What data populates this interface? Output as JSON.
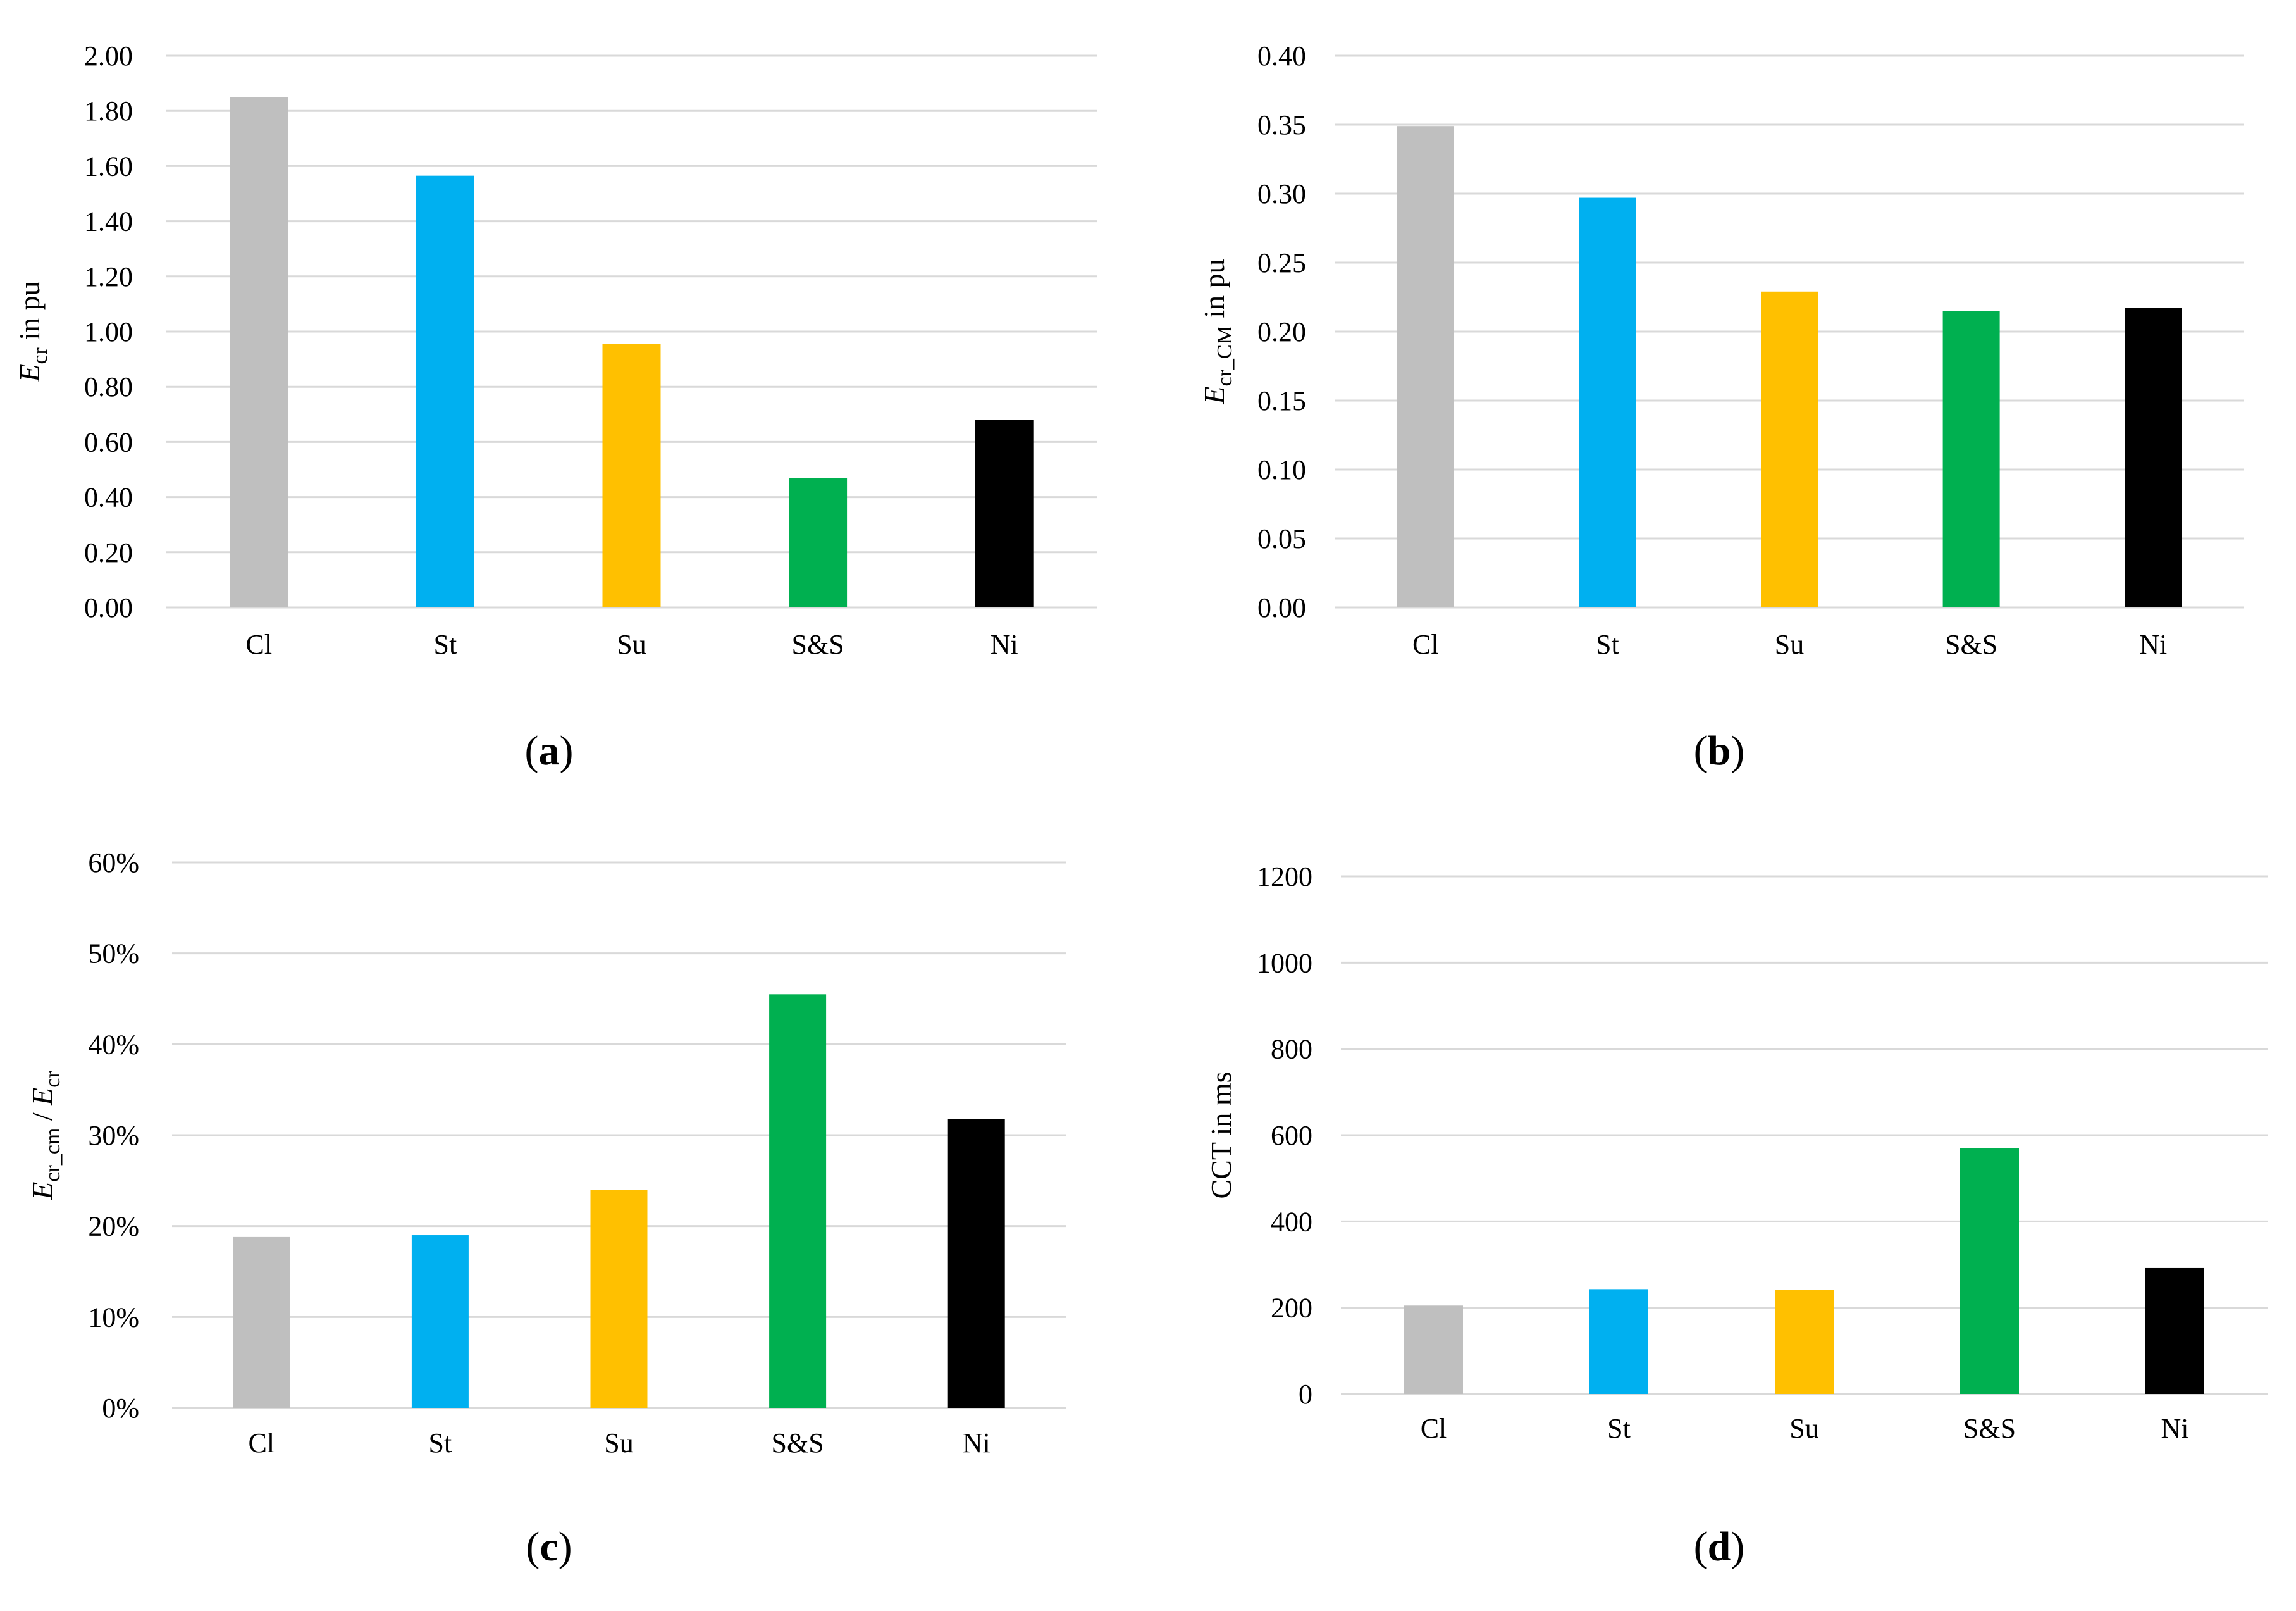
{
  "chart_data": [
    {
      "type": "bar",
      "panel": "a",
      "caption_letter": "a",
      "categories": [
        "Cl",
        "St",
        "Su",
        "S&S",
        "Ni"
      ],
      "values": [
        1.85,
        1.565,
        0.955,
        0.47,
        0.68
      ],
      "ylim": [
        0,
        2.0
      ],
      "yticks": [
        "0.00",
        "0.20",
        "0.40",
        "0.60",
        "0.80",
        "1.00",
        "1.20",
        "1.40",
        "1.60",
        "1.80",
        "2.00"
      ],
      "ylabel": {
        "var": "E",
        "sub": "cr",
        "rest": " in pu"
      },
      "colors": [
        "#bfbfbf",
        "#00b0f0",
        "#ffc000",
        "#00b050",
        "#000000"
      ]
    },
    {
      "type": "bar",
      "panel": "b",
      "caption_letter": "b",
      "categories": [
        "Cl",
        "St",
        "Su",
        "S&S",
        "Ni"
      ],
      "values": [
        0.349,
        0.297,
        0.229,
        0.215,
        0.217
      ],
      "ylim": [
        0,
        0.4
      ],
      "yticks": [
        "0.00",
        "0.05",
        "0.10",
        "0.15",
        "0.20",
        "0.25",
        "0.30",
        "0.35",
        "0.40"
      ],
      "ylabel": {
        "var": "E",
        "sub": "cr_CM",
        "rest": " in pu"
      },
      "colors": [
        "#bfbfbf",
        "#00b0f0",
        "#ffc000",
        "#00b050",
        "#000000"
      ]
    },
    {
      "type": "bar",
      "panel": "c",
      "caption_letter": "c",
      "categories": [
        "Cl",
        "St",
        "Su",
        "S&S",
        "Ni"
      ],
      "values": [
        0.188,
        0.19,
        0.24,
        0.455,
        0.318
      ],
      "ylim": [
        0,
        0.6
      ],
      "yticks": [
        "0%",
        "10%",
        "20%",
        "30%",
        "40%",
        "50%",
        "60%"
      ],
      "ylabel": {
        "var": "E",
        "sub": "cr_cm",
        "mid": " / ",
        "var2": "E",
        "sub2": "cr"
      },
      "colors": [
        "#bfbfbf",
        "#00b0f0",
        "#ffc000",
        "#00b050",
        "#000000"
      ]
    },
    {
      "type": "bar",
      "panel": "d",
      "caption_letter": "d",
      "categories": [
        "Cl",
        "St",
        "Su",
        "S&S",
        "Ni"
      ],
      "values": [
        205,
        243,
        242,
        570,
        292
      ],
      "ylim": [
        0,
        1200
      ],
      "yticks": [
        "0",
        "200",
        "400",
        "600",
        "800",
        "1000",
        "1200"
      ],
      "ylabel": {
        "text": "CCT in ms"
      },
      "colors": [
        "#bfbfbf",
        "#00b0f0",
        "#ffc000",
        "#00b050",
        "#000000"
      ]
    }
  ]
}
